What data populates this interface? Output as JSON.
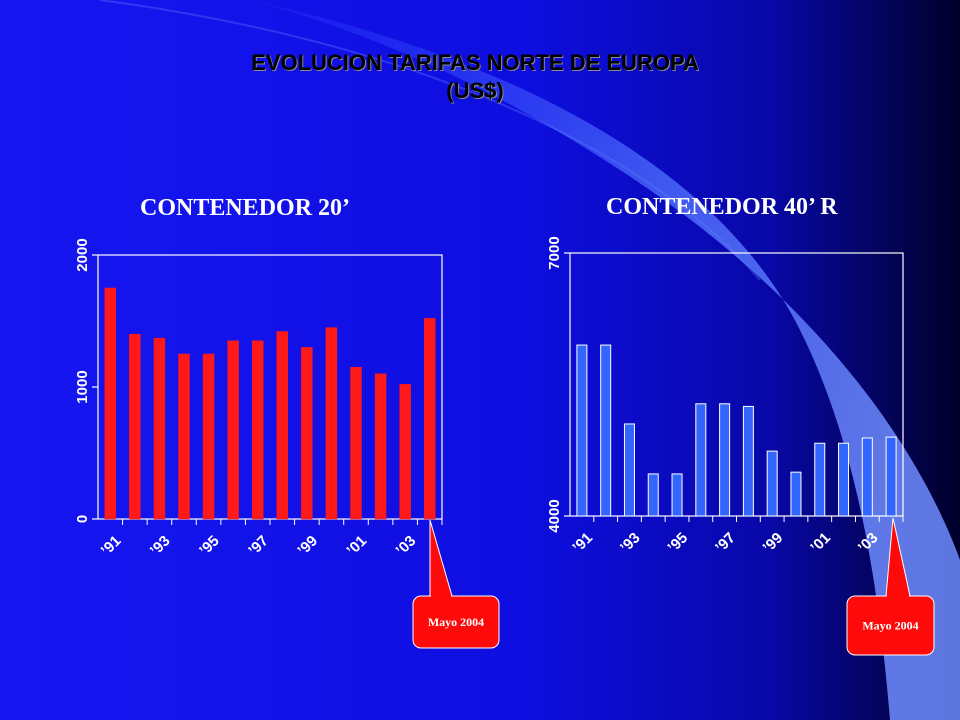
{
  "title": {
    "line1": "EVOLUCION TARIFAS NORTE DE EUROPA",
    "line2": "(US$)"
  },
  "colors": {
    "background": "#1010ee",
    "bar20": "#ff1a1a",
    "bar40": "#3366ff",
    "callout": "#ff0a0a"
  },
  "chart_data": [
    {
      "type": "bar",
      "title": "CONTENEDOR 20’",
      "categories": [
        "’91",
        "",
        "’93",
        "",
        "’95",
        "",
        "’97",
        "",
        "’99",
        "",
        "’01",
        "",
        "’03",
        ""
      ],
      "values": [
        1750,
        1400,
        1370,
        1250,
        1250,
        1350,
        1350,
        1420,
        1300,
        1450,
        1150,
        1100,
        1020,
        1520
      ],
      "ylim": [
        0,
        2000
      ],
      "yticks": [
        "0",
        "1000",
        "2000"
      ],
      "xlabel": "",
      "ylabel": "",
      "callout": "Mayo 2004"
    },
    {
      "type": "bar",
      "title": "CONTENEDOR 40’ R",
      "categories": [
        "’91",
        "",
        "’93",
        "",
        "’95",
        "",
        "’97",
        "",
        "’99",
        "",
        "’01",
        "",
        "’03",
        ""
      ],
      "values": [
        5950,
        5950,
        5050,
        4480,
        4480,
        5280,
        5280,
        5250,
        4740,
        4500,
        4830,
        4830,
        4890,
        4900
      ],
      "ylim": [
        4000,
        7000
      ],
      "yticks": [
        "4000",
        "7000"
      ],
      "xlabel": "",
      "ylabel": "",
      "callout": "Mayo 2004"
    }
  ]
}
